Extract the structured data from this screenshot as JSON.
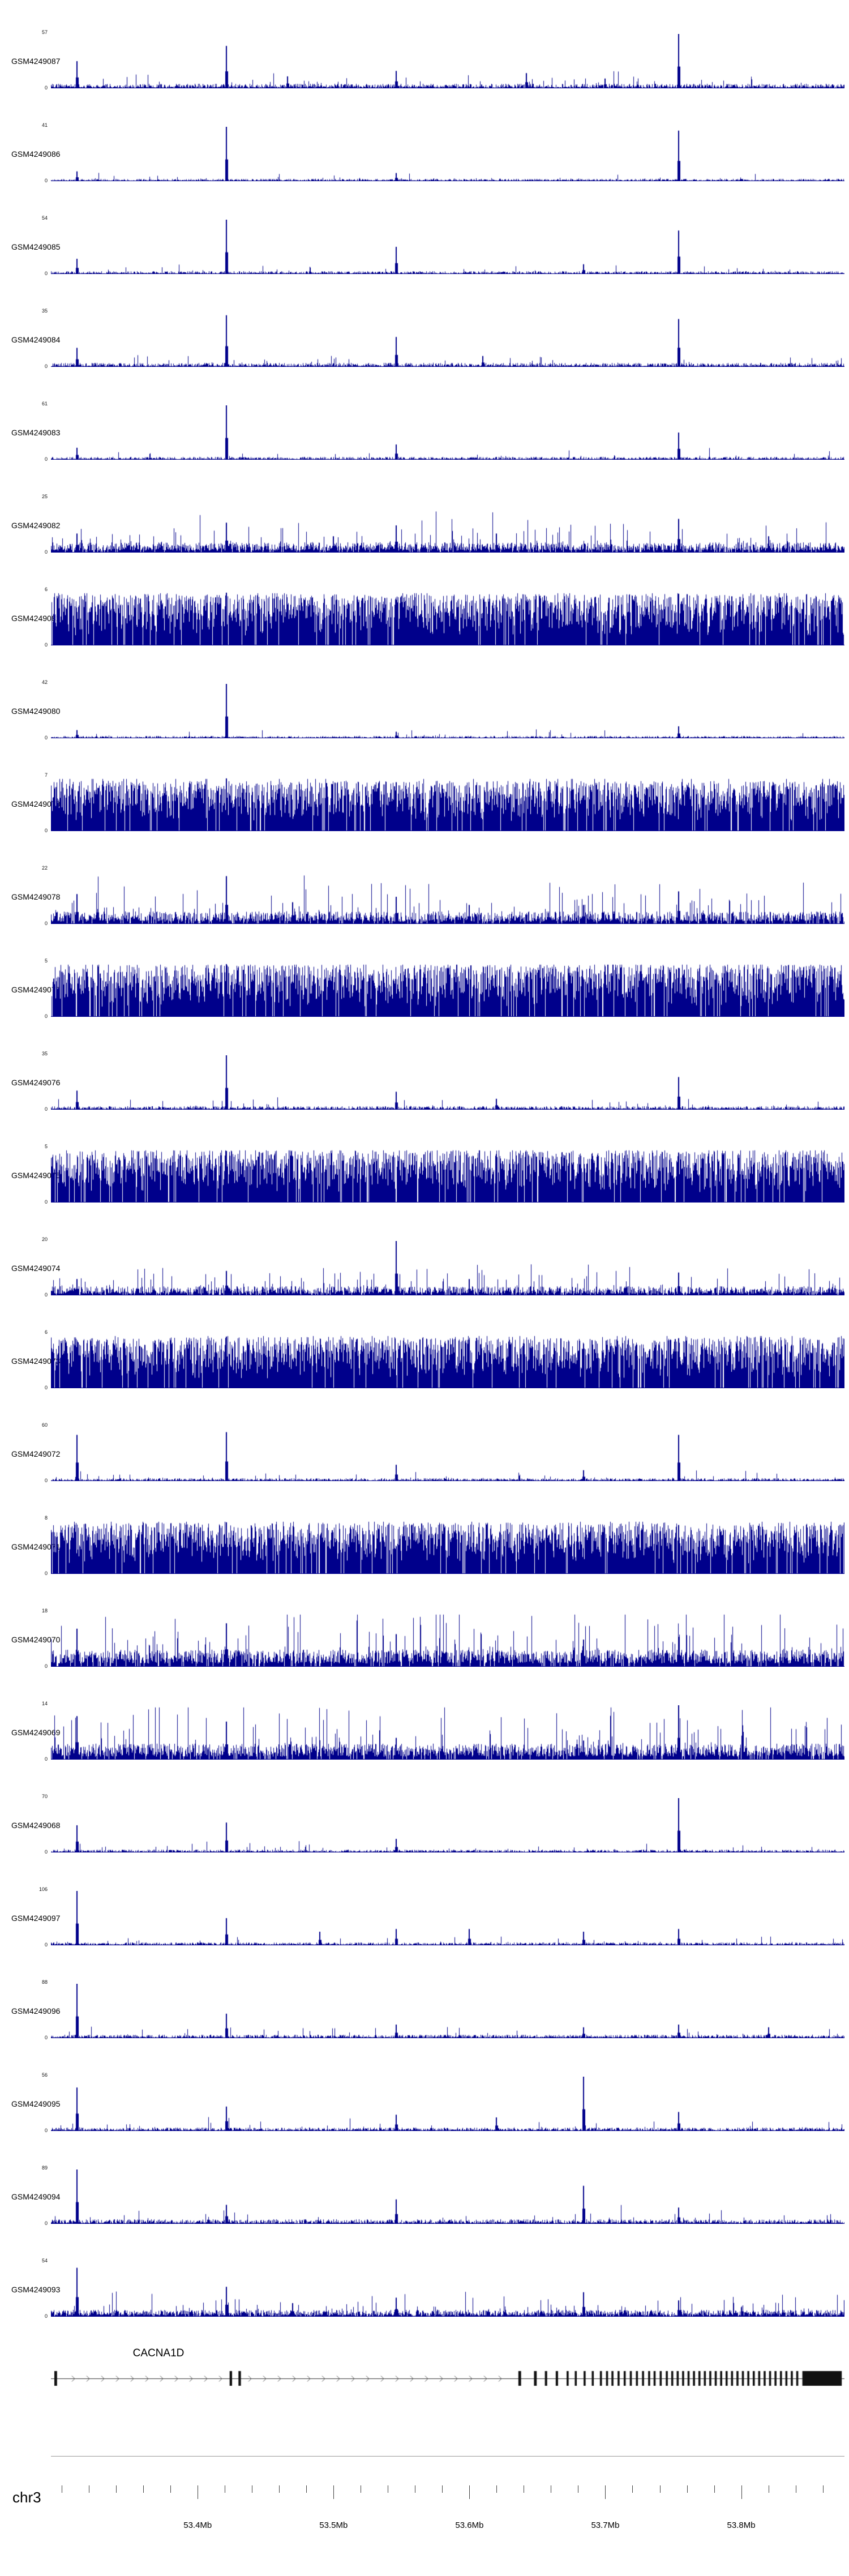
{
  "figure": {
    "background": "#ffffff",
    "signal_color": "#00008B",
    "chromosome": "chr3",
    "region_start_mb": 53.292,
    "region_end_mb": 53.876
  },
  "gene_track": {
    "title": "CACNA1D",
    "strand": "+",
    "color": "#111111",
    "exons": [
      [
        53.2945,
        53.2965
      ],
      [
        53.4235,
        53.4253
      ],
      [
        53.43,
        53.4318
      ],
      [
        53.636,
        53.638
      ],
      [
        53.6475,
        53.6495
      ],
      [
        53.6555,
        53.6572
      ],
      [
        53.6635,
        53.6652
      ],
      [
        53.6715,
        53.673
      ],
      [
        53.6775,
        53.679
      ],
      [
        53.684,
        53.6855
      ],
      [
        53.69,
        53.6915
      ],
      [
        53.696,
        53.6975
      ],
      [
        53.7005,
        53.702
      ],
      [
        53.7045,
        53.706
      ],
      [
        53.709,
        53.7105
      ],
      [
        53.7135,
        53.715
      ],
      [
        53.718,
        53.7195
      ],
      [
        53.7225,
        53.724
      ],
      [
        53.727,
        53.7285
      ],
      [
        53.7315,
        53.733
      ],
      [
        53.7355,
        53.737
      ],
      [
        53.74,
        53.7415
      ],
      [
        53.7445,
        53.746
      ],
      [
        53.7485,
        53.75
      ],
      [
        53.7525,
        53.754
      ],
      [
        53.7565,
        53.758
      ],
      [
        53.7605,
        53.762
      ],
      [
        53.7645,
        53.766
      ],
      [
        53.7685,
        53.77
      ],
      [
        53.7725,
        53.774
      ],
      [
        53.7765,
        53.778
      ],
      [
        53.7805,
        53.782
      ],
      [
        53.7845,
        53.786
      ],
      [
        53.7885,
        53.79
      ],
      [
        53.7925,
        53.794
      ],
      [
        53.7965,
        53.798
      ],
      [
        53.8005,
        53.802
      ],
      [
        53.8045,
        53.806
      ],
      [
        53.8085,
        53.81
      ],
      [
        53.8125,
        53.814
      ],
      [
        53.8165,
        53.818
      ],
      [
        53.8205,
        53.822
      ],
      [
        53.8245,
        53.826
      ],
      [
        53.8285,
        53.83
      ],
      [
        53.8325,
        53.834
      ],
      [
        53.8365,
        53.838
      ],
      [
        53.8405,
        53.842
      ],
      [
        53.845,
        53.874
      ]
    ]
  },
  "axis": {
    "unit": "Mb",
    "minor_start_mb": 53.3,
    "minor_end_mb": 53.86,
    "minor_interval_mb": 0.02,
    "major_ticks": [
      {
        "mb": 53.4,
        "label": "53.4Mb"
      },
      {
        "mb": 53.5,
        "label": "53.5Mb"
      },
      {
        "mb": 53.6,
        "label": "53.6Mb"
      },
      {
        "mb": 53.7,
        "label": "53.7Mb"
      },
      {
        "mb": 53.8,
        "label": "53.8Mb"
      }
    ]
  },
  "chart_data": {
    "type": "bar",
    "subtype": "genome_coverage_tracks",
    "x_axis": {
      "label": "chr3 position (Mb)",
      "range": [
        53.292,
        53.876
      ]
    },
    "gene": "CACNA1D",
    "tracks": [
      {
        "name": "GSM4249087",
        "ymax": "57",
        "ymin": "0",
        "profile": "sparse",
        "base": 0.08,
        "density": 0.88,
        "pow": 1.6,
        "tall_prob": 0.05,
        "seed": 101,
        "peaks": [
          [
            53.311,
            0.5
          ],
          [
            53.421,
            0.78
          ],
          [
            53.466,
            0.22
          ],
          [
            53.546,
            0.32
          ],
          [
            53.642,
            0.28
          ],
          [
            53.7,
            0.18
          ],
          [
            53.754,
            1.0
          ]
        ]
      },
      {
        "name": "GSM4249086",
        "ymax": "41",
        "ymin": "0",
        "profile": "sparse",
        "base": 0.04,
        "density": 0.88,
        "pow": 1.6,
        "tall_prob": 0.03,
        "seed": 102,
        "peaks": [
          [
            53.311,
            0.18
          ],
          [
            53.421,
            1.0
          ],
          [
            53.546,
            0.15
          ],
          [
            53.754,
            0.93
          ]
        ]
      },
      {
        "name": "GSM4249085",
        "ymax": "54",
        "ymin": "0",
        "profile": "sparse",
        "base": 0.05,
        "density": 0.88,
        "pow": 1.6,
        "tall_prob": 0.04,
        "seed": 103,
        "peaks": [
          [
            53.311,
            0.28
          ],
          [
            53.421,
            1.0
          ],
          [
            53.546,
            0.5
          ],
          [
            53.684,
            0.18
          ],
          [
            53.754,
            0.8
          ]
        ]
      },
      {
        "name": "GSM4249084",
        "ymax": "35",
        "ymin": "0",
        "profile": "sparse",
        "base": 0.07,
        "density": 0.88,
        "pow": 1.6,
        "tall_prob": 0.05,
        "seed": 104,
        "peaks": [
          [
            53.311,
            0.35
          ],
          [
            53.421,
            0.95
          ],
          [
            53.546,
            0.55
          ],
          [
            53.61,
            0.2
          ],
          [
            53.754,
            0.88
          ]
        ]
      },
      {
        "name": "GSM4249083",
        "ymax": "61",
        "ymin": "0",
        "profile": "sparse",
        "base": 0.05,
        "density": 0.88,
        "pow": 1.6,
        "tall_prob": 0.04,
        "seed": 105,
        "peaks": [
          [
            53.311,
            0.22
          ],
          [
            53.421,
            1.0
          ],
          [
            53.546,
            0.28
          ],
          [
            53.754,
            0.5
          ]
        ]
      },
      {
        "name": "GSM4249082",
        "ymax": "25",
        "ymin": "0",
        "profile": "medium",
        "base": 0.18,
        "density": 0.92,
        "pow": 1.4,
        "tall_prob": 0.1,
        "seed": 106,
        "peaks": [
          [
            53.311,
            0.35
          ],
          [
            53.421,
            0.55
          ],
          [
            53.5,
            0.3
          ],
          [
            53.546,
            0.5
          ],
          [
            53.62,
            0.35
          ],
          [
            53.754,
            0.62
          ],
          [
            53.82,
            0.3
          ]
        ]
      },
      {
        "name": "GSM4249081",
        "ymax": "6",
        "ymin": "0",
        "profile": "dense",
        "base": 0.9,
        "density": 0.94,
        "pow": 0.6,
        "tall_prob": 0.02,
        "seed": 107,
        "peaks": [
          [
            53.421,
            0.97
          ],
          [
            53.754,
            0.95
          ]
        ]
      },
      {
        "name": "GSM4249080",
        "ymax": "42",
        "ymin": "0",
        "profile": "sparse",
        "base": 0.04,
        "density": 0.88,
        "pow": 1.6,
        "tall_prob": 0.03,
        "seed": 108,
        "peaks": [
          [
            53.311,
            0.15
          ],
          [
            53.421,
            1.0
          ],
          [
            53.546,
            0.12
          ],
          [
            53.754,
            0.22
          ]
        ]
      },
      {
        "name": "GSM4249079",
        "ymax": "7",
        "ymin": "0",
        "profile": "dense",
        "base": 0.88,
        "density": 0.94,
        "pow": 0.6,
        "tall_prob": 0.02,
        "seed": 109,
        "peaks": [
          [
            53.421,
            0.97
          ],
          [
            53.546,
            0.9
          ]
        ]
      },
      {
        "name": "GSM4249078",
        "ymax": "22",
        "ymin": "0",
        "profile": "medium",
        "base": 0.22,
        "density": 0.9,
        "pow": 1.4,
        "tall_prob": 0.1,
        "seed": 110,
        "peaks": [
          [
            53.311,
            0.55
          ],
          [
            53.421,
            0.88
          ],
          [
            53.47,
            0.4
          ],
          [
            53.546,
            0.5
          ],
          [
            53.6,
            0.35
          ],
          [
            53.684,
            0.35
          ],
          [
            53.754,
            0.6
          ]
        ]
      },
      {
        "name": "GSM4249077",
        "ymax": "5",
        "ymin": "0",
        "profile": "dense",
        "base": 0.92,
        "density": 0.94,
        "pow": 0.6,
        "tall_prob": 0.02,
        "seed": 111,
        "peaks": [
          [
            53.421,
            0.97
          ],
          [
            53.754,
            0.9
          ]
        ]
      },
      {
        "name": "GSM4249076",
        "ymax": "35",
        "ymin": "0",
        "profile": "sparse",
        "base": 0.06,
        "density": 0.88,
        "pow": 1.6,
        "tall_prob": 0.05,
        "seed": 112,
        "peaks": [
          [
            53.311,
            0.35
          ],
          [
            53.421,
            1.0
          ],
          [
            53.546,
            0.33
          ],
          [
            53.62,
            0.2
          ],
          [
            53.754,
            0.6
          ]
        ]
      },
      {
        "name": "GSM4249075",
        "ymax": "5",
        "ymin": "0",
        "profile": "dense",
        "base": 0.92,
        "density": 0.94,
        "pow": 0.6,
        "tall_prob": 0.02,
        "seed": 113,
        "peaks": [
          [
            53.421,
            0.95
          ],
          [
            53.754,
            0.92
          ]
        ]
      },
      {
        "name": "GSM4249074",
        "ymax": "20",
        "ymin": "0",
        "profile": "medium",
        "base": 0.16,
        "density": 0.9,
        "pow": 1.4,
        "tall_prob": 0.1,
        "seed": 114,
        "peaks": [
          [
            53.311,
            0.3
          ],
          [
            53.421,
            0.45
          ],
          [
            53.546,
            1.0
          ],
          [
            53.6,
            0.3
          ],
          [
            53.754,
            0.42
          ]
        ]
      },
      {
        "name": "GSM4249073",
        "ymax": "6",
        "ymin": "0",
        "profile": "dense",
        "base": 0.9,
        "density": 0.94,
        "pow": 0.6,
        "tall_prob": 0.02,
        "seed": 115,
        "peaks": [
          [
            53.421,
            0.95
          ],
          [
            53.754,
            0.92
          ]
        ]
      },
      {
        "name": "GSM4249072",
        "ymax": "60",
        "ymin": "0",
        "profile": "sparse",
        "base": 0.05,
        "density": 0.88,
        "pow": 1.6,
        "tall_prob": 0.04,
        "seed": 116,
        "peaks": [
          [
            53.311,
            0.85
          ],
          [
            53.421,
            0.9
          ],
          [
            53.546,
            0.3
          ],
          [
            53.684,
            0.2
          ],
          [
            53.754,
            0.85
          ]
        ]
      },
      {
        "name": "GSM4249071",
        "ymax": "8",
        "ymin": "0",
        "profile": "dense",
        "base": 0.9,
        "density": 0.94,
        "pow": 0.6,
        "tall_prob": 0.02,
        "seed": 117,
        "peaks": [
          [
            53.421,
            0.95
          ],
          [
            53.754,
            0.9
          ]
        ]
      },
      {
        "name": "GSM4249070",
        "ymax": "18",
        "ymin": "0",
        "profile": "medium",
        "base": 0.3,
        "density": 0.92,
        "pow": 1.2,
        "tall_prob": 0.12,
        "seed": 118,
        "peaks": [
          [
            53.311,
            0.7
          ],
          [
            53.421,
            0.8
          ],
          [
            53.546,
            0.6
          ],
          [
            53.684,
            0.5
          ],
          [
            53.754,
            0.55
          ]
        ]
      },
      {
        "name": "GSM4249069",
        "ymax": "14",
        "ymin": "0",
        "profile": "medium",
        "base": 0.28,
        "density": 0.92,
        "pow": 1.2,
        "tall_prob": 0.12,
        "seed": 119,
        "peaks": [
          [
            53.311,
            0.8
          ],
          [
            53.421,
            0.7
          ],
          [
            53.546,
            0.4
          ],
          [
            53.684,
            0.35
          ],
          [
            53.754,
            1.0
          ]
        ]
      },
      {
        "name": "GSM4249068",
        "ymax": "70",
        "ymin": "0",
        "profile": "sparse",
        "base": 0.05,
        "density": 0.88,
        "pow": 1.6,
        "tall_prob": 0.04,
        "seed": 120,
        "peaks": [
          [
            53.311,
            0.5
          ],
          [
            53.421,
            0.55
          ],
          [
            53.546,
            0.25
          ],
          [
            53.754,
            1.0
          ]
        ]
      },
      {
        "name": "GSM4249097",
        "ymax": "106",
        "ymin": "0",
        "profile": "sparse",
        "base": 0.05,
        "density": 0.88,
        "pow": 1.6,
        "tall_prob": 0.05,
        "seed": 121,
        "peaks": [
          [
            53.311,
            1.0
          ],
          [
            53.421,
            0.5
          ],
          [
            53.49,
            0.25
          ],
          [
            53.546,
            0.3
          ],
          [
            53.6,
            0.3
          ],
          [
            53.684,
            0.25
          ],
          [
            53.754,
            0.3
          ]
        ]
      },
      {
        "name": "GSM4249096",
        "ymax": "88",
        "ymin": "0",
        "profile": "sparse",
        "base": 0.06,
        "density": 0.88,
        "pow": 1.6,
        "tall_prob": 0.05,
        "seed": 122,
        "peaks": [
          [
            53.311,
            1.0
          ],
          [
            53.421,
            0.45
          ],
          [
            53.546,
            0.25
          ],
          [
            53.684,
            0.2
          ],
          [
            53.754,
            0.25
          ],
          [
            53.82,
            0.2
          ]
        ]
      },
      {
        "name": "GSM4249095",
        "ymax": "56",
        "ymin": "0",
        "profile": "sparse",
        "base": 0.06,
        "density": 0.88,
        "pow": 1.6,
        "tall_prob": 0.05,
        "seed": 123,
        "peaks": [
          [
            53.311,
            0.8
          ],
          [
            53.421,
            0.45
          ],
          [
            53.546,
            0.3
          ],
          [
            53.62,
            0.25
          ],
          [
            53.684,
            1.0
          ],
          [
            53.754,
            0.35
          ]
        ]
      },
      {
        "name": "GSM4249094",
        "ymax": "89",
        "ymin": "0",
        "profile": "sparse",
        "base": 0.08,
        "density": 0.88,
        "pow": 1.6,
        "tall_prob": 0.06,
        "seed": 124,
        "peaks": [
          [
            53.311,
            1.0
          ],
          [
            53.421,
            0.35
          ],
          [
            53.546,
            0.45
          ],
          [
            53.684,
            0.7
          ],
          [
            53.754,
            0.3
          ]
        ]
      },
      {
        "name": "GSM4249093",
        "ymax": "54",
        "ymin": "0",
        "profile": "medium",
        "base": 0.12,
        "density": 0.9,
        "pow": 1.4,
        "tall_prob": 0.08,
        "seed": 125,
        "peaks": [
          [
            53.311,
            0.9
          ],
          [
            53.421,
            0.55
          ],
          [
            53.47,
            0.25
          ],
          [
            53.546,
            0.35
          ],
          [
            53.684,
            0.45
          ],
          [
            53.754,
            0.3
          ]
        ]
      }
    ]
  }
}
